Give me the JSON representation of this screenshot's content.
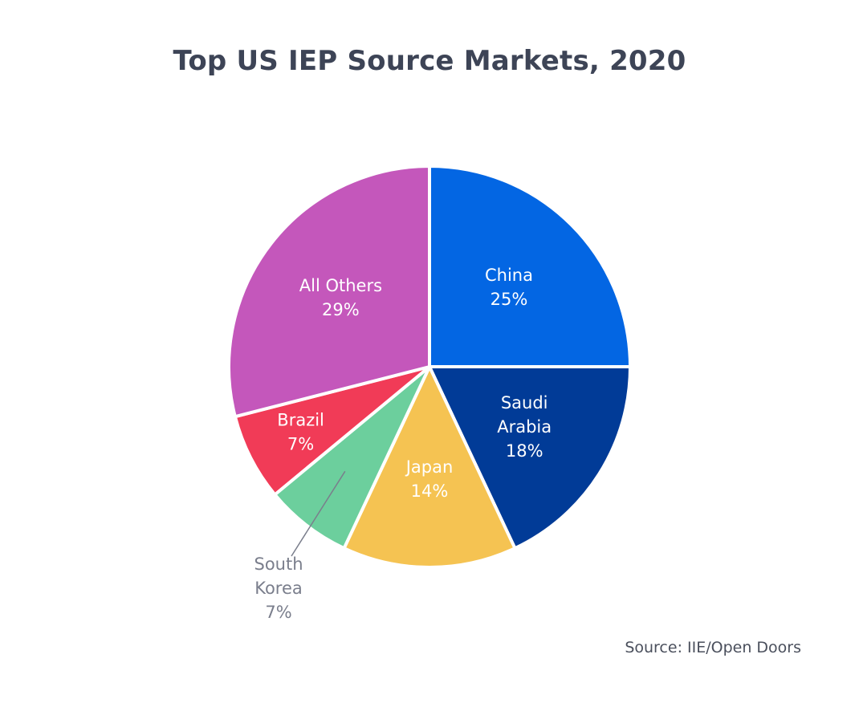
{
  "chart_data": {
    "type": "pie",
    "title": "Top US IEP Source Markets, 2020",
    "source": "Source: IIE/Open Doors",
    "slices": [
      {
        "name": "China",
        "label_lines": [
          "China"
        ],
        "value": 25,
        "value_label": "25%",
        "color": "#0366e3",
        "text_color": "#ffffff",
        "label_position": "inside"
      },
      {
        "name": "Saudi Arabia",
        "label_lines": [
          "Saudi",
          "Arabia"
        ],
        "value": 18,
        "value_label": "18%",
        "color": "#013b97",
        "text_color": "#ffffff",
        "label_position": "inside"
      },
      {
        "name": "Japan",
        "label_lines": [
          "Japan"
        ],
        "value": 14,
        "value_label": "14%",
        "color": "#f5c352",
        "text_color": "#ffffff",
        "label_position": "inside"
      },
      {
        "name": "South Korea",
        "label_lines": [
          "South",
          "Korea"
        ],
        "value": 7,
        "value_label": "7%",
        "color": "#6ccf9d",
        "text_color": "#7a7e8c",
        "label_position": "outside"
      },
      {
        "name": "Brazil",
        "label_lines": [
          "Brazil"
        ],
        "value": 7,
        "value_label": "7%",
        "color": "#f13b57",
        "text_color": "#ffffff",
        "label_position": "inside"
      },
      {
        "name": "All Others",
        "label_lines": [
          "All Others"
        ],
        "value": 29,
        "value_label": "29%",
        "color": "#c457bb",
        "text_color": "#ffffff",
        "label_position": "inside"
      }
    ]
  }
}
